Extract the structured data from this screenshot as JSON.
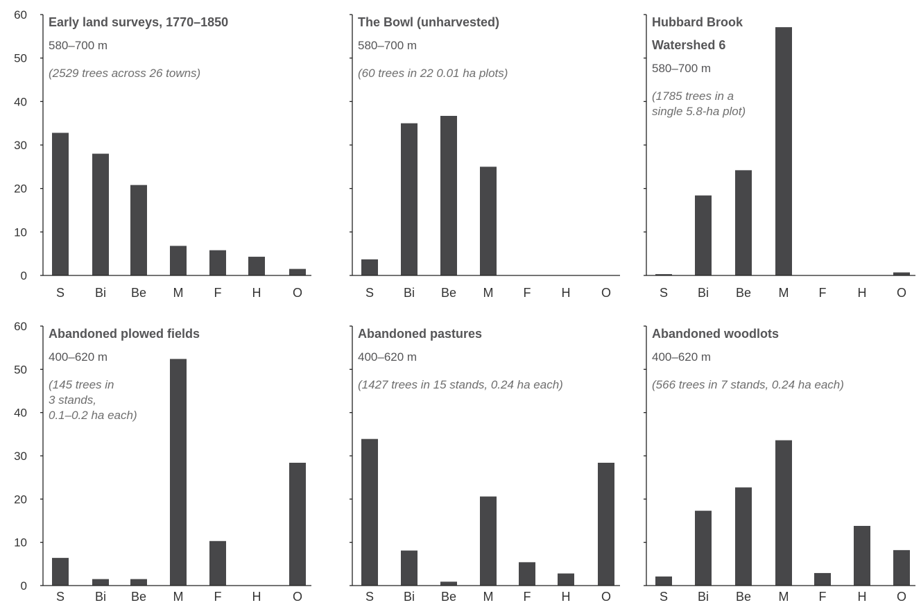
{
  "style": {
    "bar_color": "#474749",
    "axis_color": "#222222",
    "title_color": "#555557",
    "text_color": "#333333",
    "note_color": "#6e6e6e"
  },
  "chart_data": [
    {
      "type": "bar",
      "title_lines": [
        "Early land surveys, 1770–1850"
      ],
      "elevation": "580–700 m",
      "note_lines": [
        "(2529 trees across 26 towns)"
      ],
      "categories": [
        "S",
        "Bi",
        "Be",
        "M",
        "F",
        "H",
        "O"
      ],
      "values": [
        32.8,
        28.0,
        20.8,
        6.8,
        5.8,
        4.3,
        1.5
      ],
      "ylim": [
        0,
        60
      ],
      "yticks": [
        "0",
        "10",
        "20",
        "30",
        "40",
        "50",
        "60"
      ],
      "show_ytick_labels": true
    },
    {
      "type": "bar",
      "title_lines": [
        "The Bowl (unharvested)"
      ],
      "elevation": "580–700 m",
      "note_lines": [
        "(60 trees in 22 0.01 ha plots)"
      ],
      "categories": [
        "S",
        "Bi",
        "Be",
        "M",
        "F",
        "H",
        "O"
      ],
      "values": [
        3.7,
        35.0,
        36.7,
        25.0,
        0,
        0,
        0
      ],
      "ylim": [
        0,
        60
      ],
      "yticks": [
        "0",
        "10",
        "20",
        "30",
        "40",
        "50",
        "60"
      ],
      "show_ytick_labels": false
    },
    {
      "type": "bar",
      "title_lines": [
        "Hubbard Brook",
        "Watershed 6"
      ],
      "elevation": "580–700 m",
      "note_lines": [
        "(1785 trees in a",
        "single 5.8-ha plot)"
      ],
      "categories": [
        "S",
        "Bi",
        "Be",
        "M",
        "F",
        "H",
        "O"
      ],
      "values": [
        0.3,
        18.4,
        24.2,
        57.1,
        0,
        0,
        0.7
      ],
      "ylim": [
        0,
        60
      ],
      "yticks": [
        "0",
        "10",
        "20",
        "30",
        "40",
        "50",
        "60"
      ],
      "show_ytick_labels": false
    },
    {
      "type": "bar",
      "title_lines": [
        "Abandoned plowed fields"
      ],
      "elevation": "400–620 m",
      "note_lines": [
        "(145 trees in",
        "3 stands,",
        "0.1–0.2 ha each)"
      ],
      "categories": [
        "S",
        "Bi",
        "Be",
        "M",
        "F",
        "H",
        "O"
      ],
      "values": [
        6.4,
        1.5,
        1.5,
        52.4,
        10.3,
        0,
        28.4
      ],
      "ylim": [
        0,
        60
      ],
      "yticks": [
        "0",
        "10",
        "20",
        "30",
        "40",
        "50",
        "60"
      ],
      "show_ytick_labels": true
    },
    {
      "type": "bar",
      "title_lines": [
        "Abandoned pastures"
      ],
      "elevation": "400–620 m",
      "note_lines": [
        "(1427 trees in 15 stands, 0.24 ha each)"
      ],
      "categories": [
        "S",
        "Bi",
        "Be",
        "M",
        "F",
        "H",
        "O"
      ],
      "values": [
        33.9,
        8.1,
        0.9,
        20.6,
        5.4,
        2.8,
        28.4
      ],
      "ylim": [
        0,
        60
      ],
      "yticks": [
        "0",
        "10",
        "20",
        "30",
        "40",
        "50",
        "60"
      ],
      "show_ytick_labels": false
    },
    {
      "type": "bar",
      "title_lines": [
        "Abandoned woodlots"
      ],
      "elevation": "400–620 m",
      "note_lines": [
        "(566 trees in 7 stands, 0.24 ha each)"
      ],
      "categories": [
        "S",
        "Bi",
        "Be",
        "M",
        "F",
        "H",
        "O"
      ],
      "values": [
        2.1,
        17.3,
        22.7,
        33.6,
        2.9,
        13.8,
        8.2
      ],
      "ylim": [
        0,
        60
      ],
      "yticks": [
        "0",
        "10",
        "20",
        "30",
        "40",
        "50",
        "60"
      ],
      "show_ytick_labels": false
    }
  ]
}
